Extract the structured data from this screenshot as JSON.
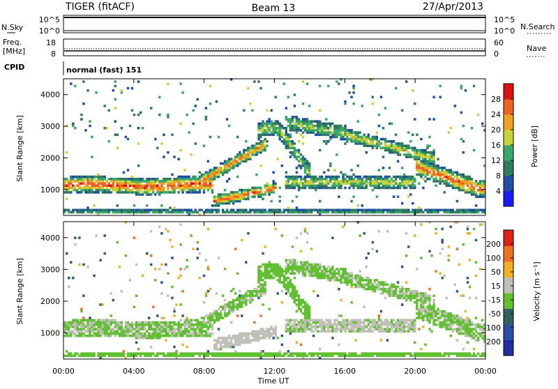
{
  "header": {
    "station": "TIGER (fitACF)",
    "beam": "Beam 13",
    "date": "27/Apr/2013"
  },
  "top_panels": {
    "nsky_label": "N.Sky",
    "nsky_ticks": [
      "10^5",
      "10^0"
    ],
    "nsearch_label": "N.Search",
    "nsearch_ticks": [
      "10^5",
      "10^0"
    ],
    "freq_label_line1": "Freq.",
    "freq_label_line2": "[MHz]",
    "freq_ticks": [
      "18",
      "8"
    ],
    "nave_label": "Nave",
    "nave_ticks": [
      "60",
      "0"
    ],
    "cpid_label": "CPID",
    "cpid_value": "normal (fast) 151"
  },
  "chart_data": [
    {
      "type": "heatmap",
      "panel": "power",
      "ylabel": "Slant Range [km]",
      "ylim": [
        180,
        4500
      ],
      "yticks": [
        1000,
        2000,
        3000,
        4000
      ],
      "xlim": [
        0,
        24
      ],
      "colorbar_label": "Power [dB]",
      "colorbar_ticks": [
        "28",
        "24",
        "20",
        "16",
        "12",
        "8",
        "4"
      ],
      "colorbar_range": [
        0,
        32
      ],
      "colors": [
        "#1a1aff",
        "#1d4fa8",
        "#2f7b5c",
        "#3aa86a",
        "#c8d33a",
        "#f0a020",
        "#f06020",
        "#e01010"
      ],
      "grid": false
    },
    {
      "type": "heatmap",
      "panel": "velocity",
      "ylabel": "Slant Range [km]",
      "ylim": [
        180,
        4500
      ],
      "yticks": [
        1000,
        2000,
        3000,
        4000
      ],
      "xlim": [
        0,
        24
      ],
      "xlabel": "Time UT",
      "xticks": [
        "00:00",
        "04:00",
        "08:00",
        "12:00",
        "16:00",
        "20:00",
        "00:00"
      ],
      "colorbar_label": "Velocity [m s⁻¹]",
      "colorbar_ticks": [
        "200",
        "100",
        "50",
        "15",
        "-15",
        "-50",
        "-100",
        "-200"
      ],
      "colorbar_range": [
        -250,
        250
      ],
      "colors": [
        "#2030a0",
        "#2a4fa8",
        "#306060",
        "#60c030",
        "#c0c0b8",
        "#f0b020",
        "#f07020",
        "#e02010"
      ],
      "grid": false
    }
  ]
}
